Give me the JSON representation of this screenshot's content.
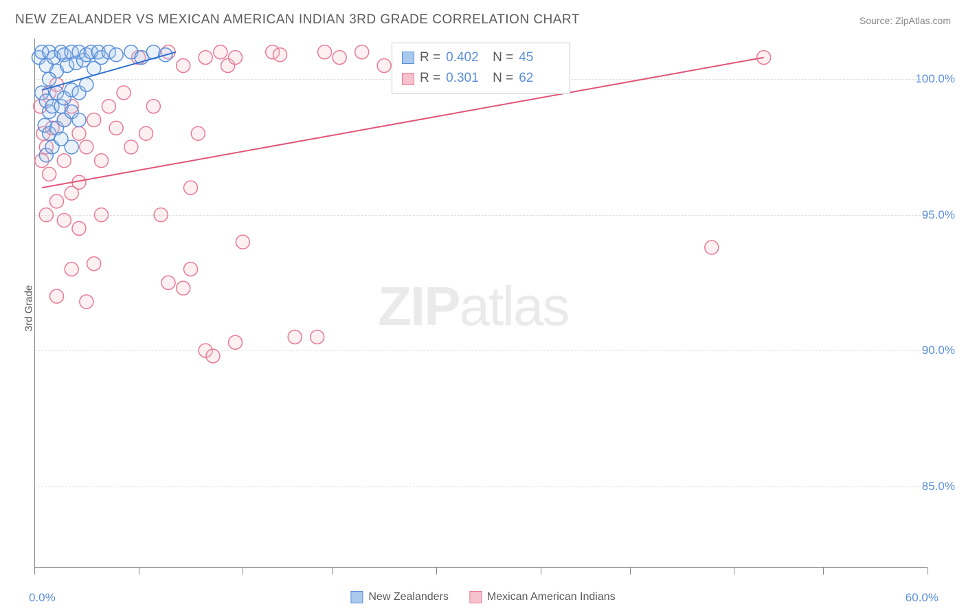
{
  "title": "NEW ZEALANDER VS MEXICAN AMERICAN INDIAN 3RD GRADE CORRELATION CHART",
  "source": "Source: ZipAtlas.com",
  "ylabel": "3rd Grade",
  "watermark_bold": "ZIP",
  "watermark_light": "atlas",
  "chart": {
    "type": "scatter",
    "background_color": "#ffffff",
    "grid_color": "#dddddd",
    "axis_color": "#888888",
    "tick_label_color": "#5b8fd8",
    "tick_fontsize": 17,
    "title_fontsize": 19,
    "title_color": "#5a5a5a",
    "xlim": [
      0,
      60
    ],
    "ylim": [
      82,
      101.5
    ],
    "xticks": [
      0,
      7,
      14,
      20,
      27,
      34,
      40,
      47,
      53,
      60
    ],
    "xtick_labels": {
      "0": "0.0%",
      "60": "60.0%"
    },
    "yticks": [
      85,
      90,
      95,
      100
    ],
    "ytick_labels": [
      "85.0%",
      "90.0%",
      "95.0%",
      "100.0%"
    ],
    "marker_radius": 10,
    "marker_fill_opacity": 0.25,
    "marker_stroke_width": 1.5,
    "line_width": 2
  },
  "series": [
    {
      "name": "New Zealanders",
      "color_fill": "#a8c8ec",
      "color_stroke": "#5b8fd8",
      "line_color": "#2b6fd0",
      "R": "0.402",
      "N": "45",
      "trend": {
        "x1": 0.5,
        "y1": 99.6,
        "x2": 9.5,
        "y2": 101.0
      },
      "points": [
        [
          0.3,
          100.8
        ],
        [
          0.5,
          101.0
        ],
        [
          0.8,
          100.5
        ],
        [
          1.0,
          101.0
        ],
        [
          1.3,
          100.8
        ],
        [
          1.5,
          100.3
        ],
        [
          1.8,
          101.0
        ],
        [
          2.0,
          100.9
        ],
        [
          2.2,
          100.5
        ],
        [
          2.5,
          101.0
        ],
        [
          2.8,
          100.6
        ],
        [
          3.0,
          101.0
        ],
        [
          3.3,
          100.7
        ],
        [
          3.5,
          100.9
        ],
        [
          3.8,
          101.0
        ],
        [
          4.0,
          100.4
        ],
        [
          4.3,
          101.0
        ],
        [
          4.5,
          100.8
        ],
        [
          5.0,
          101.0
        ],
        [
          5.5,
          100.9
        ],
        [
          0.5,
          99.5
        ],
        [
          0.8,
          99.2
        ],
        [
          1.0,
          98.8
        ],
        [
          1.2,
          99.0
        ],
        [
          1.5,
          99.5
        ],
        [
          1.8,
          99.0
        ],
        [
          2.0,
          99.3
        ],
        [
          2.5,
          99.6
        ],
        [
          3.0,
          99.5
        ],
        [
          3.5,
          99.8
        ],
        [
          0.7,
          98.3
        ],
        [
          1.0,
          98.0
        ],
        [
          1.5,
          98.2
        ],
        [
          2.0,
          98.5
        ],
        [
          2.5,
          98.8
        ],
        [
          3.0,
          98.5
        ],
        [
          0.8,
          97.2
        ],
        [
          1.2,
          97.5
        ],
        [
          1.8,
          97.8
        ],
        [
          2.5,
          97.5
        ],
        [
          6.5,
          101.0
        ],
        [
          7.2,
          100.8
        ],
        [
          8.0,
          101.0
        ],
        [
          8.8,
          100.9
        ],
        [
          1.0,
          100.0
        ]
      ]
    },
    {
      "name": "Mexican American Indians",
      "color_fill": "#f5c2ce",
      "color_stroke": "#e87a95",
      "line_color": "#e15578",
      "R": "0.301",
      "N": "62",
      "trend": {
        "x1": 0.5,
        "y1": 96.0,
        "x2": 49.0,
        "y2": 100.8
      },
      "points": [
        [
          0.4,
          99.0
        ],
        [
          0.6,
          98.0
        ],
        [
          0.8,
          97.5
        ],
        [
          1.0,
          99.5
        ],
        [
          1.2,
          98.2
        ],
        [
          0.5,
          97.0
        ],
        [
          1.5,
          99.8
        ],
        [
          2.0,
          98.5
        ],
        [
          2.5,
          99.0
        ],
        [
          3.0,
          98.0
        ],
        [
          1.0,
          96.5
        ],
        [
          1.5,
          95.5
        ],
        [
          2.0,
          97.0
        ],
        [
          2.5,
          95.8
        ],
        [
          3.0,
          96.2
        ],
        [
          3.5,
          97.5
        ],
        [
          4.0,
          98.5
        ],
        [
          4.5,
          97.0
        ],
        [
          5.0,
          99.0
        ],
        [
          5.5,
          98.2
        ],
        [
          6.0,
          99.5
        ],
        [
          6.5,
          97.5
        ],
        [
          7.0,
          100.8
        ],
        [
          7.5,
          98.0
        ],
        [
          8.0,
          99.0
        ],
        [
          9.0,
          101.0
        ],
        [
          10.0,
          100.5
        ],
        [
          10.5,
          96.0
        ],
        [
          11.0,
          98.0
        ],
        [
          11.5,
          100.8
        ],
        [
          12.5,
          101.0
        ],
        [
          13.0,
          100.5
        ],
        [
          13.5,
          100.8
        ],
        [
          16.0,
          101.0
        ],
        [
          16.5,
          100.9
        ],
        [
          19.5,
          101.0
        ],
        [
          20.5,
          100.8
        ],
        [
          22.0,
          101.0
        ],
        [
          0.8,
          95.0
        ],
        [
          2.0,
          94.8
        ],
        [
          3.0,
          94.5
        ],
        [
          4.5,
          95.0
        ],
        [
          8.5,
          95.0
        ],
        [
          2.5,
          93.0
        ],
        [
          4.0,
          93.2
        ],
        [
          9.0,
          92.5
        ],
        [
          14.0,
          94.0
        ],
        [
          1.5,
          92.0
        ],
        [
          3.5,
          91.8
        ],
        [
          10.0,
          92.3
        ],
        [
          10.5,
          93.0
        ],
        [
          13.5,
          90.3
        ],
        [
          17.5,
          90.5
        ],
        [
          19.0,
          90.5
        ],
        [
          11.5,
          90.0
        ],
        [
          12.0,
          89.8
        ],
        [
          23.5,
          100.5
        ],
        [
          27.5,
          101.0
        ],
        [
          29.0,
          100.8
        ],
        [
          35.0,
          101.0
        ],
        [
          45.5,
          93.8
        ],
        [
          49.0,
          100.8
        ]
      ]
    }
  ],
  "info_box": {
    "r_label": "R =",
    "n_label": "N ="
  },
  "bottom_legend": [
    {
      "label": "New Zealanders",
      "fill": "#a8c8ec",
      "stroke": "#5b8fd8"
    },
    {
      "label": "Mexican American Indians",
      "fill": "#f5c2ce",
      "stroke": "#e87a95"
    }
  ]
}
